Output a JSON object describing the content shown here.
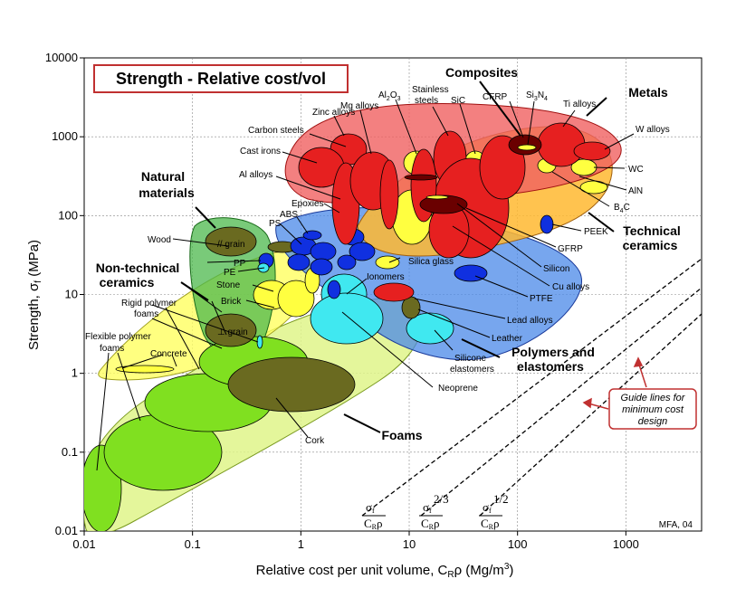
{
  "chart_data": {
    "type": "scatter",
    "title": "Strength - Relative cost/vol",
    "xlabel": "Relative cost per unit volume, CRρ  (Mg/m3)",
    "ylabel": "Strength, σf (MPa)",
    "xscale": "log",
    "yscale": "log",
    "xlim": [
      0.01,
      5000
    ],
    "ylim": [
      0.01,
      10000
    ],
    "grid": true,
    "x_ticks": [
      "0.01",
      "0.1",
      "1",
      "10",
      "100",
      "1000"
    ],
    "y_ticks": [
      "0.01",
      "0.1",
      "1",
      "10",
      "100",
      "1000",
      "10000"
    ],
    "families": [
      {
        "name": "Metals",
        "color": "#e62020"
      },
      {
        "name": "Composites",
        "color": "#8a0000"
      },
      {
        "name": "Technical ceramics",
        "color": "#ffc020"
      },
      {
        "name": "Natural materials",
        "color": "#2ea62e"
      },
      {
        "name": "Non-technical ceramics",
        "color": "#ffff40"
      },
      {
        "name": "Polymers and elastomers",
        "color": "#3070e0"
      },
      {
        "name": "Foams",
        "color": "#c8f040"
      }
    ],
    "materials": [
      {
        "name": "Zinc alloys",
        "cost": 2.5,
        "strength": 300
      },
      {
        "name": "Mg alloys",
        "cost": 5,
        "strength": 250
      },
      {
        "name": "Carbon steels",
        "cost": 1.2,
        "strength": 600
      },
      {
        "name": "Cast irons",
        "cost": 1.0,
        "strength": 300
      },
      {
        "name": "Al alloys",
        "cost": 2.5,
        "strength": 150
      },
      {
        "name": "Al2O3",
        "cost": 10,
        "strength": 300
      },
      {
        "name": "Stainless steels",
        "cost": 6,
        "strength": 450
      },
      {
        "name": "SiC",
        "cost": 30,
        "strength": 300
      },
      {
        "name": "CFRP",
        "cost": 60,
        "strength": 700
      },
      {
        "name": "Si3N4",
        "cost": 60,
        "strength": 700
      },
      {
        "name": "Ti alloys",
        "cost": 100,
        "strength": 700
      },
      {
        "name": "W alloys",
        "cost": 500,
        "strength": 800
      },
      {
        "name": "WC",
        "cost": 300,
        "strength": 300
      },
      {
        "name": "AlN",
        "cost": 500,
        "strength": 200
      },
      {
        "name": "B4C",
        "cost": 600,
        "strength": 150
      },
      {
        "name": "PEEK",
        "cost": 80,
        "strength": 100
      },
      {
        "name": "GFRP",
        "cost": 15,
        "strength": 80
      },
      {
        "name": "Silicon",
        "cost": 30,
        "strength": 150
      },
      {
        "name": "Cu alloys",
        "cost": 10,
        "strength": 80
      },
      {
        "name": "PTFE",
        "cost": 10,
        "strength": 20
      },
      {
        "name": "Lead alloys",
        "cost": 2.5,
        "strength": 10
      },
      {
        "name": "Leather",
        "cost": 5,
        "strength": 7
      },
      {
        "name": "Silicone elastomers",
        "cost": 10,
        "strength": 5
      },
      {
        "name": "Neoprene",
        "cost": 3,
        "strength": 3
      },
      {
        "name": "Ionomers",
        "cost": 1.5,
        "strength": 12
      },
      {
        "name": "Silica glass",
        "cost": 5,
        "strength": 50
      },
      {
        "name": "Epoxies",
        "cost": 3,
        "strength": 60
      },
      {
        "name": "ABS",
        "cost": 1.5,
        "strength": 40
      },
      {
        "name": "PS",
        "cost": 1.2,
        "strength": 35
      },
      {
        "name": "PP",
        "cost": 0.9,
        "strength": 30
      },
      {
        "name": "PE",
        "cost": 0.9,
        "strength": 20
      },
      {
        "name": "Stone",
        "cost": 0.3,
        "strength": 8
      },
      {
        "name": "Brick",
        "cost": 0.3,
        "strength": 10
      },
      {
        "name": "Concrete",
        "cost": 0.04,
        "strength": 1.3
      },
      {
        "name": "Wood // grain",
        "cost": 0.1,
        "strength": 50
      },
      {
        "name": "Wood ⊥ grain",
        "cost": 0.1,
        "strength": 5
      },
      {
        "name": "Rigid polymer foams",
        "cost": 0.15,
        "strength": 1.5
      },
      {
        "name": "Flexible polymer foams",
        "cost": 0.03,
        "strength": 0.3
      },
      {
        "name": "Cork",
        "cost": 0.5,
        "strength": 2
      }
    ]
  },
  "family_labels": {
    "composites": "Composites",
    "metals": "Metals",
    "natural_1": "Natural",
    "natural_2": "materials",
    "nontech_1": "Non-technical",
    "nontech_2": "ceramics",
    "tech_1": "Technical",
    "tech_2": "ceramics",
    "poly_1": "Polymers and",
    "poly_2": "elastomers",
    "foams": "Foams"
  },
  "material_labels": {
    "zinc": "Zinc alloys",
    "mg": "Mg alloys",
    "al2o3": "Al",
    "stainless_1": "Stainless",
    "stainless_2": "steels",
    "sic": "SiC",
    "cfrp": "CFRP",
    "si3n4": "Si",
    "ti": "Ti alloys",
    "carbon": "Carbon steels",
    "castiron": "Cast irons",
    "al": "Al alloys",
    "walloys": "W alloys",
    "wc": "WC",
    "aln": "AlN",
    "b4c": "B",
    "epoxies": "Epoxies",
    "abs": "ABS",
    "ps": "PS",
    "wood": "Wood",
    "wood_par": "// grain",
    "wood_perp": "⊥ grain",
    "pp": "PP",
    "pe": "PE",
    "stone": "Stone",
    "brick": "Brick",
    "rigid_1": "Rigid polymer",
    "rigid_2": "foams",
    "flex_1": "Flexible polymer",
    "flex_2": "foams",
    "concrete": "Concrete",
    "silica": "Silica glass",
    "ionomers": "Ionomers",
    "peek": "PEEK",
    "gfrp": "GFRP",
    "silicon": "Silicon",
    "cu": "Cu alloys",
    "ptfe": "PTFE",
    "lead": "Lead alloys",
    "leather": "Leather",
    "silicone_1": "Silicone",
    "silicone_2": "elastomers",
    "neoprene": "Neoprene",
    "cork": "Cork"
  },
  "guide": {
    "box_1": "Guide lines for",
    "box_2": "minimum cost",
    "box_3": "design",
    "idx_sigma": "σ",
    "idx_f": "f",
    "idx_c": "C",
    "idx_r": "R",
    "idx_rho": "ρ",
    "exp_2_3": "2/3",
    "exp_1_2": "1/2"
  },
  "credit": "MFA, 04",
  "colors": {
    "metals": "#e62020",
    "composites": "#8a0000",
    "ceramics": "#ffc020",
    "natural": "#2ea62e",
    "nontech": "#ffff40",
    "polymers": "#3070e0",
    "foams": "#c8f040",
    "elastomers": "#40e8f0"
  }
}
